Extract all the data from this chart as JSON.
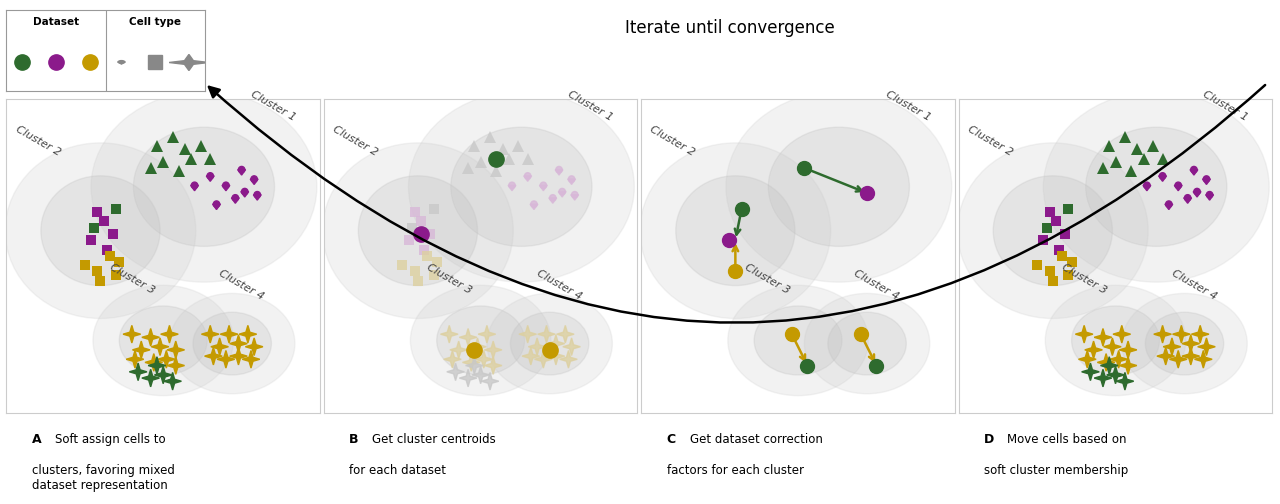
{
  "colors": {
    "green": "#2e6b2e",
    "purple": "#8b1a8b",
    "gold": "#c49a00",
    "text": "#333333"
  },
  "panel_labels": [
    "A",
    "B",
    "C",
    "D"
  ],
  "panel_descriptions": [
    "Soft assign cells to\nclusters, favoring mixed\ndataset representation",
    "Get cluster centroids\nfor each dataset",
    "Get dataset correction\nfactors for each cluster",
    "Move cells based on\nsoft cluster membership"
  ],
  "arrow_text": "Iterate until convergence",
  "figsize": [
    12.8,
    5.04
  ],
  "dpi": 100
}
